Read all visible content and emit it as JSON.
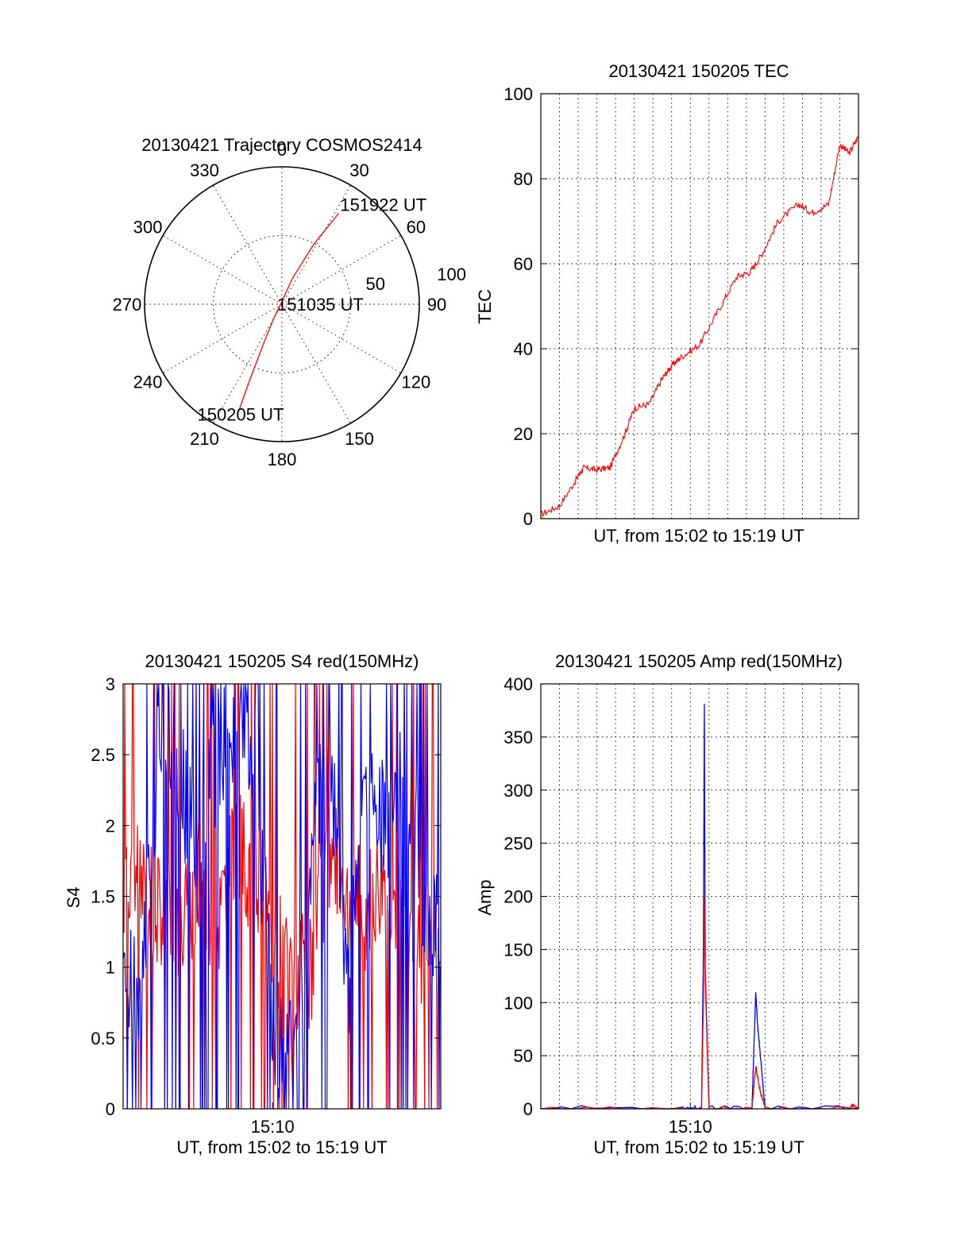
{
  "chart_data": [
    {
      "type": "polar",
      "title": "20130421 Trajectory COSMOS2414",
      "azimuth_ticks": [
        "0",
        "30",
        "60",
        "90",
        "120",
        "150",
        "180",
        "210",
        "240",
        "270",
        "300",
        "330"
      ],
      "radial_ticks": [
        "50",
        "100"
      ],
      "rlim": [
        0,
        100
      ],
      "grid": true,
      "trajectory": {
        "color": "#ff0000",
        "points": [
          {
            "azimuth": 202,
            "radius": 84
          },
          {
            "azimuth": 203,
            "radius": 60
          },
          {
            "azimuth": 205,
            "radius": 32
          },
          {
            "azimuth": 210,
            "radius": 12
          },
          {
            "azimuth": 360,
            "radius": 2
          },
          {
            "azimuth": 22,
            "radius": 20
          },
          {
            "azimuth": 28,
            "radius": 50
          },
          {
            "azimuth": 32,
            "radius": 78
          }
        ]
      },
      "annotations": [
        {
          "text": "151922 UT",
          "azimuth": 32,
          "radius": 80
        },
        {
          "text": "151035 UT",
          "azimuth": 0,
          "radius": 0
        },
        {
          "text": "150205 UT",
          "azimuth": 202,
          "radius": 84
        }
      ]
    },
    {
      "type": "line",
      "title": "20130421 150205 TEC",
      "xlabel": "UT, from 15:02 to 15:19 UT",
      "ylabel": "TEC",
      "xlim": [
        "15:02",
        "15:19"
      ],
      "ylim": [
        0,
        100
      ],
      "yticks": [
        "0",
        "20",
        "40",
        "60",
        "80",
        "100"
      ],
      "grid": true,
      "series": [
        {
          "color": "#ff0000",
          "x_minutes_after_1502": [
            0,
            1,
            2,
            2.3,
            3,
            3.7,
            4.5,
            5,
            5.8,
            6.5,
            7,
            7.5,
            8.5,
            9.5,
            10.5,
            11.2,
            11.8,
            12.7,
            13.8,
            14.5,
            15.4,
            16,
            16.5,
            17
          ],
          "values": [
            1,
            3,
            10,
            12,
            11.5,
            12,
            20,
            26,
            27,
            33,
            36,
            38,
            41,
            49,
            57,
            58,
            62,
            70,
            74,
            72,
            74,
            88,
            86,
            90
          ]
        }
      ]
    },
    {
      "type": "line",
      "title": "20130421 150205 S4 red(150MHz)",
      "xlabel": "UT, from 15:02 to 15:19 UT",
      "ylabel": "S4",
      "xlim": [
        "15:02",
        "15:19"
      ],
      "xticks": [
        "15:10"
      ],
      "ylim": [
        0,
        3
      ],
      "yticks": [
        "0",
        "0.5",
        "1",
        "1.5",
        "2",
        "2.5",
        "3"
      ],
      "grid": false,
      "series": [
        {
          "color": "#ff0000",
          "x_minutes_after_1502": [
            0,
            1,
            2,
            3,
            4,
            5,
            6,
            7,
            8,
            9,
            10,
            11,
            12,
            13,
            14,
            15,
            16,
            17
          ],
          "values": [
            1.5,
            1.6,
            1.4,
            1.3,
            1.5,
            1.3,
            1.8,
            1.7,
            1.2,
            1.0,
            0.9,
            1.8,
            1.6,
            1.4,
            1.7,
            1.3,
            1.1,
            1.2
          ]
        },
        {
          "color": "#0000ff",
          "x_minutes_after_1502": [
            0,
            1,
            2,
            3,
            4,
            5,
            6,
            7,
            8,
            9,
            10,
            11,
            12,
            13,
            14,
            15,
            16,
            17
          ],
          "values": [
            0.85,
            0.85,
            2.8,
            2.4,
            1.7,
            2.5,
            2.7,
            2.5,
            0.6,
            0.4,
            1.7,
            2.6,
            0.8,
            2.4,
            2.0,
            2.3,
            1.6,
            1.2
          ]
        }
      ]
    },
    {
      "type": "line",
      "title": "20130421 150205 Amp red(150MHz)",
      "xlabel": "UT, from 15:02 to 15:19 UT",
      "ylabel": "Amp",
      "xlim": [
        "15:02",
        "15:19"
      ],
      "xticks": [
        "15:10"
      ],
      "ylim": [
        0,
        400
      ],
      "yticks": [
        "0",
        "50",
        "100",
        "150",
        "200",
        "250",
        "300",
        "350",
        "400"
      ],
      "grid": true,
      "series": [
        {
          "color": "#0000ff",
          "x_minutes_after_1502": [
            0,
            7.6,
            8.6,
            8.7,
            8.75,
            8.8,
            9.0,
            11.3,
            11.5,
            11.6,
            11.7,
            12.0,
            17
          ],
          "values": [
            1,
            1,
            1,
            150,
            380,
            130,
            1,
            1,
            110,
            80,
            60,
            1,
            1
          ]
        },
        {
          "color": "#ff0000",
          "x_minutes_after_1502": [
            0,
            8.6,
            8.7,
            8.75,
            8.8,
            9.0,
            11.3,
            11.5,
            11.6,
            11.7,
            12.0,
            16.5,
            16.7,
            17
          ],
          "values": [
            0,
            0,
            100,
            200,
            120,
            0,
            0,
            40,
            30,
            20,
            0,
            0,
            3,
            0
          ]
        }
      ]
    }
  ]
}
